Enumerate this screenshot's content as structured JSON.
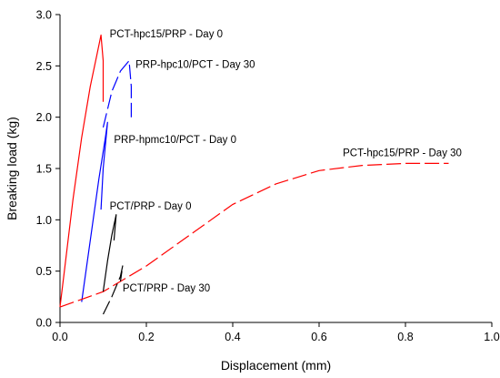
{
  "chart_data": {
    "type": "line",
    "xlabel": "Displacement (mm)",
    "ylabel": "Breaking load (kg)",
    "xlim": [
      0.0,
      1.0
    ],
    "ylim": [
      0.0,
      3.0
    ],
    "x_ticks": [
      "0.0",
      "0.2",
      "0.4",
      "0.6",
      "0.8",
      "1.0"
    ],
    "y_ticks": [
      "0.0",
      "0.5",
      "1.0",
      "1.5",
      "2.0",
      "2.5",
      "3.0"
    ],
    "grid": false,
    "series": [
      {
        "name": "PCT-hpc15/PRP - Day 0",
        "color": "#ff0000",
        "dash": "solid",
        "points": [
          [
            0.0,
            0.15
          ],
          [
            0.01,
            0.5
          ],
          [
            0.03,
            1.2
          ],
          [
            0.05,
            1.8
          ],
          [
            0.07,
            2.3
          ],
          [
            0.085,
            2.6
          ],
          [
            0.095,
            2.8
          ],
          [
            0.1,
            2.55
          ],
          [
            0.1,
            2.15
          ]
        ]
      },
      {
        "name": "PRP-hpc10/PCT - Day 30",
        "color": "#0000ff",
        "dash": "long-dash",
        "points": [
          [
            0.1,
            1.9
          ],
          [
            0.12,
            2.25
          ],
          [
            0.14,
            2.45
          ],
          [
            0.16,
            2.55
          ],
          [
            0.165,
            2.3
          ],
          [
            0.165,
            2.0
          ]
        ]
      },
      {
        "name": "PRP-hpmc10/PCT - Day 0",
        "color": "#0000ff",
        "dash": "solid",
        "points": [
          [
            0.05,
            0.2
          ],
          [
            0.07,
            0.8
          ],
          [
            0.09,
            1.4
          ],
          [
            0.105,
            1.8
          ],
          [
            0.11,
            1.95
          ],
          [
            0.1,
            1.5
          ],
          [
            0.095,
            1.1
          ]
        ]
      },
      {
        "name": "PCT-hpc15/PRP - Day 30",
        "color": "#ff0000",
        "dash": "long-dash",
        "points": [
          [
            0.0,
            0.15
          ],
          [
            0.1,
            0.3
          ],
          [
            0.2,
            0.55
          ],
          [
            0.3,
            0.85
          ],
          [
            0.4,
            1.15
          ],
          [
            0.5,
            1.35
          ],
          [
            0.6,
            1.48
          ],
          [
            0.7,
            1.53
          ],
          [
            0.8,
            1.55
          ],
          [
            0.9,
            1.55
          ]
        ]
      },
      {
        "name": "PCT/PRP - Day 0",
        "color": "#000000",
        "dash": "solid",
        "points": [
          [
            0.1,
            0.3
          ],
          [
            0.11,
            0.6
          ],
          [
            0.12,
            0.85
          ],
          [
            0.13,
            1.05
          ],
          [
            0.125,
            0.8
          ]
        ]
      },
      {
        "name": "PCT/PRP - Day 30",
        "color": "#000000",
        "dash": "long-dash",
        "points": [
          [
            0.1,
            0.08
          ],
          [
            0.12,
            0.25
          ],
          [
            0.14,
            0.45
          ],
          [
            0.145,
            0.55
          ],
          [
            0.14,
            0.4
          ]
        ]
      }
    ],
    "annotations": [
      {
        "text": "PCT-hpc15/PRP - Day 0",
        "x": 0.115,
        "y": 2.78,
        "anchor": "start"
      },
      {
        "text": "PRP-hpc10/PCT - Day 30",
        "x": 0.175,
        "y": 2.48,
        "anchor": "start"
      },
      {
        "text": "PRP-hpmc10/PCT - Day 0",
        "x": 0.125,
        "y": 1.75,
        "anchor": "start"
      },
      {
        "text": "PCT-hpc15/PRP - Day 30",
        "x": 0.655,
        "y": 1.62,
        "anchor": "start"
      },
      {
        "text": "PCT/PRP - Day 0",
        "x": 0.115,
        "y": 1.1,
        "anchor": "start"
      },
      {
        "text": "PCT/PRP - Day 30",
        "x": 0.145,
        "y": 0.3,
        "anchor": "start"
      }
    ]
  }
}
